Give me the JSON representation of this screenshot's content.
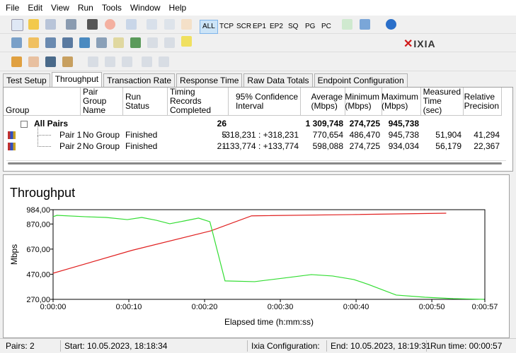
{
  "menu": [
    "File",
    "Edit",
    "View",
    "Run",
    "Tools",
    "Window",
    "Help"
  ],
  "toolbar": {
    "filters": [
      "ALL",
      "TCP",
      "SCR",
      "EP1",
      "EP2",
      "SQ",
      "PG",
      "PC"
    ],
    "selected_filter": 0,
    "logo": "IXIA"
  },
  "tabs": [
    "Test Setup",
    "Throughput",
    "Transaction Rate",
    "Response Time",
    "Raw Data Totals",
    "Endpoint Configuration"
  ],
  "active_tab": 1,
  "table": {
    "columns": [
      "Group",
      "Pair Group\nName",
      "Run Status",
      "Timing Records\nCompleted",
      "95% Confidence\nInterval",
      "Average\n(Mbps)",
      "Minimum\n(Mbps)",
      "Maximum\n(Mbps)",
      "Measured\nTime (sec)",
      "Relative\nPrecision"
    ],
    "rows": [
      [
        "All Pairs",
        null,
        null,
        "26",
        null,
        "1 309,748",
        "274,725",
        "945,738",
        null,
        null
      ],
      [
        "Pair 1",
        "No Group",
        "Finished",
        "5",
        "-318,231 : +318,231",
        "770,654",
        "486,470",
        "945,738",
        "51,904",
        "41,294"
      ],
      [
        "Pair 2",
        "No Group",
        "Finished",
        "21",
        "-133,774 : +133,774",
        "598,088",
        "274,725",
        "934,034",
        "56,179",
        "22,367"
      ]
    ]
  },
  "chart_data": {
    "type": "line",
    "title": "Throughput",
    "x_label": "Elapsed time (h:mm:ss)",
    "y_label": "Mbps",
    "xlim": [
      0,
      57
    ],
    "ylim": [
      270,
      984
    ],
    "xticks": [
      {
        "value": 0,
        "label": "0:00:00"
      },
      {
        "value": 10,
        "label": "0:00:10"
      },
      {
        "value": 20,
        "label": "0:00:20"
      },
      {
        "value": 30,
        "label": "0:00:30"
      },
      {
        "value": 40,
        "label": "0:00:40"
      },
      {
        "value": 50,
        "label": "0:00:50"
      },
      {
        "value": 57,
        "label": "0:00:57"
      }
    ],
    "yticks": [
      {
        "value": 270,
        "label": "270,00"
      },
      {
        "value": 470,
        "label": "470,00"
      },
      {
        "value": 670,
        "label": "670,00"
      },
      {
        "value": 870,
        "label": "870,00"
      },
      {
        "value": 984,
        "label": "984,00"
      }
    ],
    "grid": false,
    "series": [
      {
        "color": "#e02020",
        "x": [
          0,
          10.4,
          20.8,
          26.2,
          39.5,
          51.9
        ],
        "values": [
          478,
          660,
          815,
          935,
          945,
          956
        ]
      },
      {
        "color": "#33dd33",
        "x": [
          0,
          0.5,
          4.2,
          7.0,
          9.8,
          11.7,
          13.6,
          15.4,
          17.3,
          19.2,
          20.7,
          22.7,
          26.6,
          30.4,
          34.1,
          36.9,
          39.7,
          41.6,
          45.3,
          49.1,
          52.8,
          56.9
        ],
        "values": [
          928,
          939,
          928,
          922,
          905,
          922,
          900,
          872,
          894,
          917,
          888,
          417,
          411,
          439,
          467,
          456,
          428,
          389,
          304,
          287,
          276,
          270
        ]
      }
    ]
  },
  "status_bar": [
    "Pairs: 2",
    "Start: 10.05.2023, 18:18:34",
    "Ixia Configuration:",
    "End: 10.05.2023, 18:19:31",
    "Run time: 00:00:57"
  ]
}
